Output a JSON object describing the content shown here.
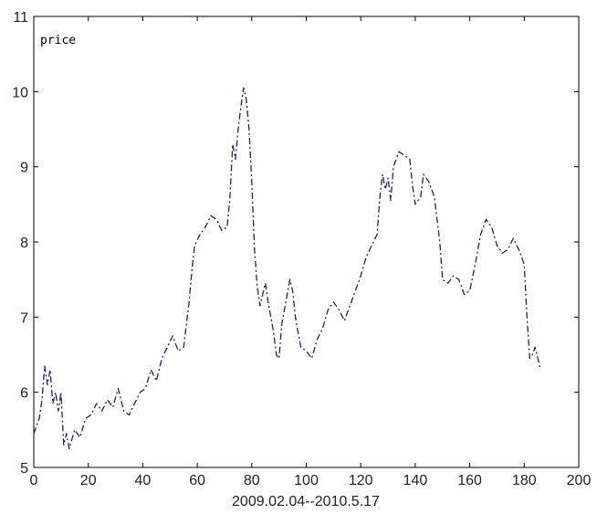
{
  "chart_data": {
    "type": "line",
    "title": "",
    "xlabel": "2009.02.04--2010.5.17",
    "ylabel": "",
    "xlim": [
      0,
      200
    ],
    "ylim": [
      5,
      11
    ],
    "x_ticks": [
      0,
      20,
      40,
      60,
      80,
      100,
      120,
      140,
      160,
      180,
      200
    ],
    "y_ticks": [
      5,
      6,
      7,
      8,
      9,
      10,
      11
    ],
    "grid": false,
    "legend_text": "price",
    "legend_position": "top-left",
    "series": [
      {
        "name": "price",
        "color": "#1f1f6e",
        "style": "dash-dot",
        "points": [
          [
            0,
            5.45
          ],
          [
            2,
            5.65
          ],
          [
            3,
            5.9
          ],
          [
            4,
            6.35
          ],
          [
            5,
            6.1
          ],
          [
            6,
            6.3
          ],
          [
            7,
            5.85
          ],
          [
            8,
            6.0
          ],
          [
            9,
            5.75
          ],
          [
            10,
            6.0
          ],
          [
            11,
            5.3
          ],
          [
            12,
            5.45
          ],
          [
            13,
            5.25
          ],
          [
            15,
            5.5
          ],
          [
            17,
            5.4
          ],
          [
            19,
            5.65
          ],
          [
            21,
            5.7
          ],
          [
            23,
            5.85
          ],
          [
            25,
            5.75
          ],
          [
            27,
            5.9
          ],
          [
            29,
            5.8
          ],
          [
            31,
            6.05
          ],
          [
            33,
            5.75
          ],
          [
            35,
            5.7
          ],
          [
            37,
            5.85
          ],
          [
            39,
            6.0
          ],
          [
            41,
            6.05
          ],
          [
            43,
            6.3
          ],
          [
            45,
            6.15
          ],
          [
            47,
            6.45
          ],
          [
            49,
            6.6
          ],
          [
            51,
            6.75
          ],
          [
            53,
            6.55
          ],
          [
            55,
            6.6
          ],
          [
            57,
            7.2
          ],
          [
            58,
            7.6
          ],
          [
            59,
            7.95
          ],
          [
            61,
            8.1
          ],
          [
            63,
            8.2
          ],
          [
            65,
            8.35
          ],
          [
            67,
            8.3
          ],
          [
            69,
            8.15
          ],
          [
            71,
            8.2
          ],
          [
            72,
            8.6
          ],
          [
            73,
            9.3
          ],
          [
            74,
            9.1
          ],
          [
            75,
            9.5
          ],
          [
            76,
            9.8
          ],
          [
            77,
            10.05
          ],
          [
            78,
            9.9
          ],
          [
            79,
            9.5
          ],
          [
            80,
            8.8
          ],
          [
            81,
            7.9
          ],
          [
            82,
            7.4
          ],
          [
            83,
            7.15
          ],
          [
            84,
            7.3
          ],
          [
            85,
            7.45
          ],
          [
            86,
            7.2
          ],
          [
            87,
            7.0
          ],
          [
            88,
            6.8
          ],
          [
            89,
            6.5
          ],
          [
            90,
            6.45
          ],
          [
            91,
            6.9
          ],
          [
            92,
            7.1
          ],
          [
            93,
            7.3
          ],
          [
            94,
            7.5
          ],
          [
            95,
            7.35
          ],
          [
            96,
            7.0
          ],
          [
            97,
            6.8
          ],
          [
            98,
            6.6
          ],
          [
            100,
            6.55
          ],
          [
            102,
            6.45
          ],
          [
            104,
            6.7
          ],
          [
            106,
            6.85
          ],
          [
            108,
            7.1
          ],
          [
            110,
            7.2
          ],
          [
            112,
            7.1
          ],
          [
            114,
            6.95
          ],
          [
            116,
            7.15
          ],
          [
            118,
            7.35
          ],
          [
            120,
            7.55
          ],
          [
            122,
            7.8
          ],
          [
            124,
            7.95
          ],
          [
            126,
            8.1
          ],
          [
            127,
            8.6
          ],
          [
            128,
            8.9
          ],
          [
            129,
            8.7
          ],
          [
            130,
            8.85
          ],
          [
            131,
            8.55
          ],
          [
            132,
            9.0
          ],
          [
            134,
            9.2
          ],
          [
            136,
            9.15
          ],
          [
            138,
            9.1
          ],
          [
            139,
            8.75
          ],
          [
            140,
            8.5
          ],
          [
            142,
            8.6
          ],
          [
            143,
            8.9
          ],
          [
            145,
            8.8
          ],
          [
            147,
            8.6
          ],
          [
            149,
            8.0
          ],
          [
            150,
            7.5
          ],
          [
            152,
            7.45
          ],
          [
            154,
            7.55
          ],
          [
            156,
            7.5
          ],
          [
            158,
            7.3
          ],
          [
            160,
            7.35
          ],
          [
            162,
            7.7
          ],
          [
            164,
            8.1
          ],
          [
            166,
            8.3
          ],
          [
            168,
            8.2
          ],
          [
            170,
            7.95
          ],
          [
            172,
            7.85
          ],
          [
            174,
            7.9
          ],
          [
            176,
            8.05
          ],
          [
            178,
            7.9
          ],
          [
            180,
            7.7
          ],
          [
            181,
            7.0
          ],
          [
            182,
            6.45
          ],
          [
            183,
            6.5
          ],
          [
            184,
            6.6
          ],
          [
            185,
            6.45
          ],
          [
            186,
            6.3
          ]
        ]
      }
    ]
  }
}
